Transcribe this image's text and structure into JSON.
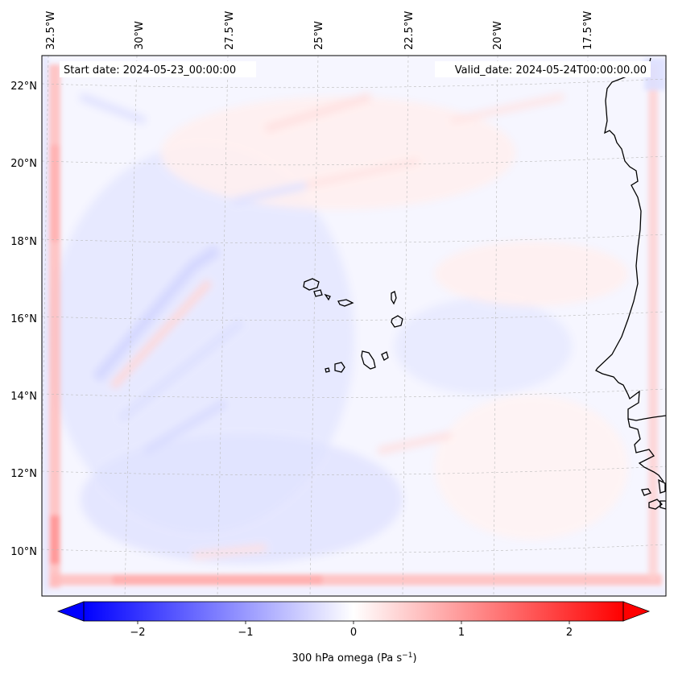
{
  "map": {
    "start_date_label": "Start date: 2024-05-23_00:00:00",
    "valid_date_label": "Valid_date: 2024-05-24T00:00:00.00",
    "lon_labels": [
      "32.5°W",
      "30°W",
      "27.5°W",
      "25°W",
      "22.5°W",
      "20°W",
      "17.5°W"
    ],
    "lat_labels": [
      "22°N",
      "20°N",
      "18°N",
      "16°N",
      "14°N",
      "12°N",
      "10°N"
    ],
    "colors": {
      "negative": "#0000ff",
      "zero": "#ffffff",
      "positive": "#ff0000",
      "coastline": "#000000",
      "gridline": "#bbbbbb"
    }
  },
  "colorbar": {
    "label": "300 hPa omega (Pa s",
    "label_sup": "−1",
    "label_close": ")",
    "tick_values": [
      -2,
      -1,
      0,
      1,
      2
    ],
    "tick_labels": [
      "−2",
      "−1",
      "0",
      "1",
      "2"
    ],
    "range": [
      -2.5,
      2.5
    ],
    "extend": "both"
  }
}
